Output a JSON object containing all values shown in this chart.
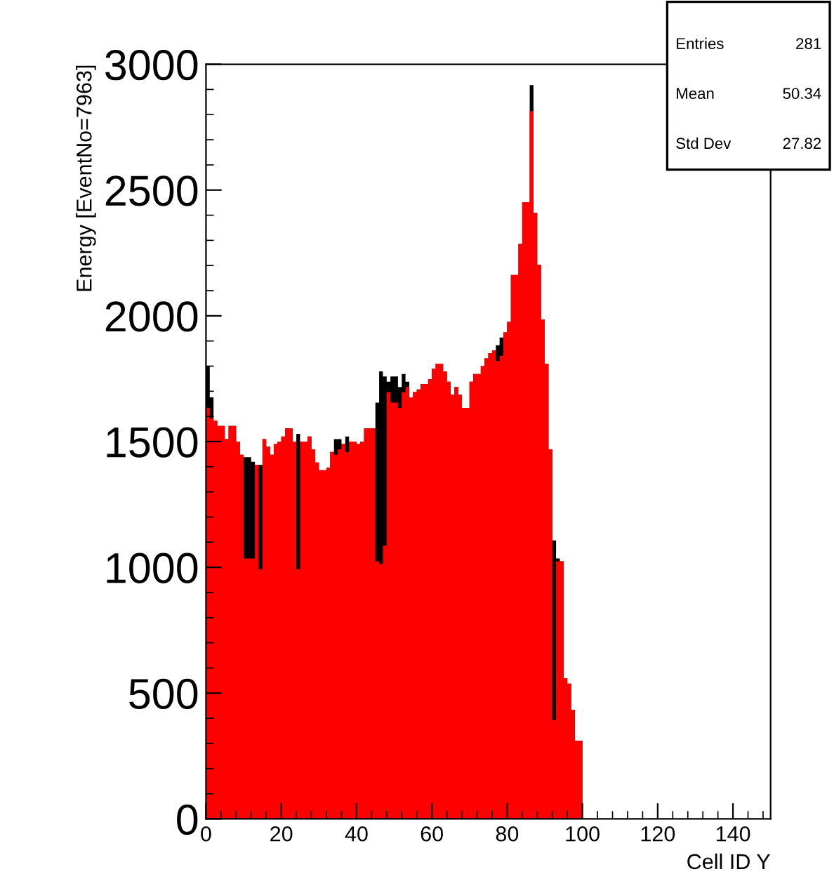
{
  "chart_data": {
    "type": "histogram",
    "xlabel": "Cell ID Y",
    "ylabel": "Energy [EventNo=7963]",
    "bins": [
      0,
      1,
      2,
      3,
      4,
      5,
      6,
      7,
      8,
      9,
      10,
      11,
      12,
      13,
      14,
      15,
      16,
      17,
      18,
      19,
      20,
      21,
      22,
      23,
      24,
      25,
      26,
      27,
      28,
      29,
      30,
      31,
      32,
      33,
      34,
      35,
      36,
      37,
      38,
      39,
      40,
      41,
      42,
      43,
      44,
      45,
      46,
      47,
      48,
      49,
      50,
      51,
      52,
      53,
      54,
      55,
      56,
      57,
      58,
      59,
      60,
      61,
      62,
      63,
      64,
      65,
      66,
      67,
      68,
      69,
      70,
      71,
      72,
      73,
      74,
      75,
      76,
      77,
      78,
      79,
      80,
      81,
      82,
      83,
      84,
      85,
      86,
      87,
      88,
      89,
      90,
      91,
      92,
      93,
      94,
      95,
      96,
      97,
      98,
      99,
      100
    ],
    "series": [
      {
        "color": "#000000",
        "values": [
          1800,
          1676,
          1583,
          1562,
          1562,
          1510,
          1562,
          1562,
          1500,
          1448,
          1438,
          1438,
          1420,
          1407,
          1407,
          1510,
          1480,
          1448,
          1490,
          1500,
          1520,
          1552,
          1552,
          1500,
          1531,
          1500,
          1500,
          1520,
          1469,
          1417,
          1386,
          1386,
          1397,
          1459,
          1510,
          1510,
          1490,
          1520,
          1500,
          1500,
          1490,
          1500,
          1552,
          1552,
          1552,
          1655,
          1779,
          1759,
          1738,
          1759,
          1759,
          1717,
          1769,
          1738,
          1676,
          1697,
          1707,
          1728,
          1728,
          1748,
          1790,
          1810,
          1810,
          1779,
          1738,
          1686,
          1717,
          1686,
          1634,
          1634,
          1738,
          1769,
          1769,
          1800,
          1831,
          1852,
          1862,
          1883,
          1914,
          1934,
          1976,
          2162,
          2162,
          2286,
          2452,
          2452,
          2917,
          2410,
          2203,
          1986,
          1810,
          1469,
          1107,
          1035,
          1024,
          559,
          538,
          434,
          310,
          310
        ]
      },
      {
        "color": "#ff0000",
        "values": [
          1634,
          1593,
          1583,
          1562,
          1562,
          1510,
          1562,
          1562,
          1500,
          1448,
          1035,
          1035,
          1035,
          1407,
          993,
          1510,
          1480,
          1448,
          1490,
          1500,
          1520,
          1552,
          1552,
          1500,
          993,
          1500,
          1500,
          1520,
          1469,
          1417,
          1386,
          1386,
          1397,
          1459,
          1448,
          1469,
          1490,
          1459,
          1500,
          1500,
          1490,
          1500,
          1552,
          1552,
          1552,
          1024,
          1014,
          1086,
          1697,
          1655,
          1655,
          1634,
          1697,
          1717,
          1676,
          1697,
          1707,
          1728,
          1728,
          1748,
          1790,
          1810,
          1810,
          1779,
          1738,
          1686,
          1717,
          1686,
          1634,
          1634,
          1738,
          1769,
          1769,
          1800,
          1831,
          1852,
          1862,
          1821,
          1841,
          1934,
          1976,
          2162,
          2162,
          2286,
          2452,
          2452,
          2814,
          2410,
          2203,
          1986,
          1810,
          1469,
          393,
          1024,
          1024,
          559,
          538,
          434,
          310,
          310
        ]
      }
    ],
    "xlim": [
      0,
      150
    ],
    "xticks": [
      0,
      20,
      40,
      60,
      80,
      100,
      120,
      140
    ],
    "ylim": [
      0,
      3000
    ],
    "yticks": [
      0,
      500,
      1000,
      1500,
      2000,
      2500,
      3000
    ],
    "grid": false,
    "legend": false,
    "annotations": [
      "Entries 281",
      "Mean 50.34",
      "Std Dev 27.82"
    ]
  }
}
